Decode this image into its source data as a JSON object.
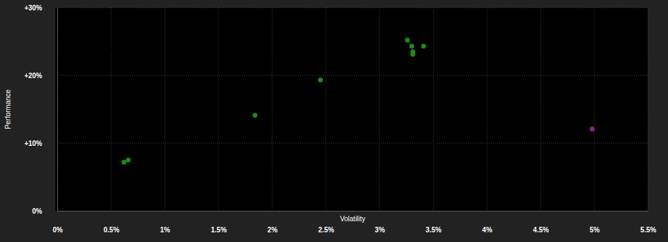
{
  "chart_data": {
    "type": "scatter",
    "x_label": "Volatility",
    "y_label": "Performance",
    "x": [
      0.62,
      0.66,
      1.84,
      2.45,
      3.26,
      3.3,
      3.41,
      3.31,
      3.31,
      4.98
    ],
    "values": [
      7.2,
      7.5,
      14.1,
      19.3,
      25.2,
      24.3,
      24.3,
      23.5,
      23.1,
      12.1
    ],
    "colors": [
      "#1a8c1a",
      "#1a8c1a",
      "#1a8c1a",
      "#1a8c1a",
      "#1a8c1a",
      "#1a8c1a",
      "#1a8c1a",
      "#1a8c1a",
      "#1a8c1a",
      "#a0189a"
    ],
    "xlim": [
      0,
      5.5
    ],
    "ylim": [
      0,
      30
    ],
    "xticks": [
      {
        "value": 0,
        "label": "0%"
      },
      {
        "value": 0.5,
        "label": "0.5%"
      },
      {
        "value": 1,
        "label": "1%"
      },
      {
        "value": 1.5,
        "label": "1.5%"
      },
      {
        "value": 2,
        "label": "2%"
      },
      {
        "value": 2.5,
        "label": "2.5%"
      },
      {
        "value": 3,
        "label": "3%"
      },
      {
        "value": 3.5,
        "label": "3.5%"
      },
      {
        "value": 4,
        "label": "4%"
      },
      {
        "value": 4.5,
        "label": "4.5%"
      },
      {
        "value": 5,
        "label": "5%"
      },
      {
        "value": 5.5,
        "label": "5.5%"
      }
    ],
    "yticks": [
      {
        "value": 0,
        "label": "0%"
      },
      {
        "value": 10,
        "label": "+10%"
      },
      {
        "value": 20,
        "label": "+20%"
      },
      {
        "value": 30,
        "label": "+30%"
      }
    ],
    "grid": true
  }
}
